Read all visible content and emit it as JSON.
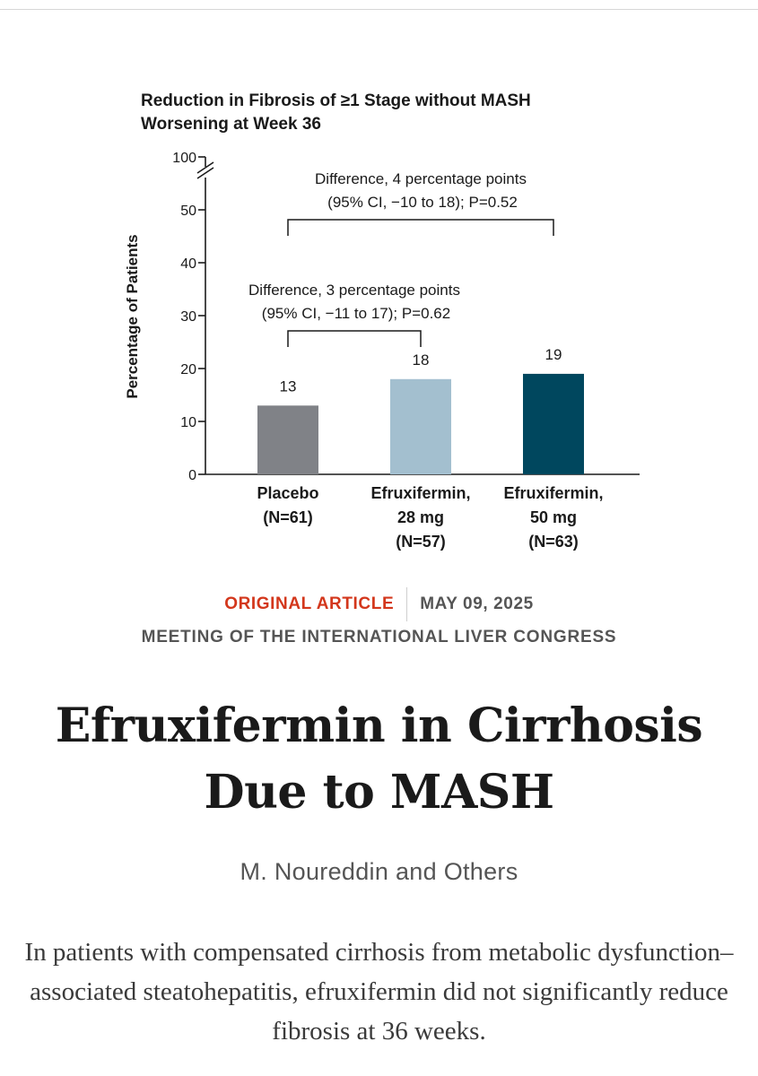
{
  "chart_data": {
    "type": "bar",
    "title": "Reduction in Fibrosis of ≥1 Stage without MASH Worsening at Week 36",
    "title_lines": [
      "Reduction in Fibrosis of ≥1 Stage without MASH",
      "Worsening at Week 36"
    ],
    "ylabel": "Percentage of Patients",
    "xlabel": "",
    "ylim": [
      0,
      100
    ],
    "axis_break": "between 50 and 100",
    "yticks": [
      0,
      10,
      20,
      30,
      40,
      50,
      100
    ],
    "grid": false,
    "categories": [
      {
        "lines": [
          "Placebo",
          "(N=61)"
        ]
      },
      {
        "lines": [
          "Efruxifermin,",
          "28 mg",
          "(N=57)"
        ]
      },
      {
        "lines": [
          "Efruxifermin,",
          "50 mg",
          "(N=63)"
        ]
      }
    ],
    "values": [
      13,
      18,
      19
    ],
    "data_labels": [
      "13",
      "18",
      "19"
    ],
    "colors": [
      "#808287",
      "#a3bfcf",
      "#00475e"
    ],
    "annotations": [
      {
        "from": 0,
        "to": 1,
        "lines": [
          "Difference, 3 percentage points",
          "(95% CI, −11 to 17); P=0.62"
        ]
      },
      {
        "from": 0,
        "to": 2,
        "lines": [
          "Difference, 4 percentage points",
          "(95% CI, −10 to 18); P=0.52"
        ]
      }
    ]
  },
  "article": {
    "type": "ORIGINAL ARTICLE",
    "date": "MAY 09, 2025",
    "meeting": "MEETING OF THE INTERNATIONAL LIVER CONGRESS",
    "title": "Efruxifermin in Cirrhosis Due to MASH",
    "authors": "M. Noureddin and Others",
    "summary": "In patients with compensated cirrhosis from metabolic dysfunction–associated steatohepatitis, efruxifermin did not significantly reduce fibrosis at 36 weeks."
  },
  "theme": {
    "accent": "#d3371c",
    "muted": "#555555"
  }
}
